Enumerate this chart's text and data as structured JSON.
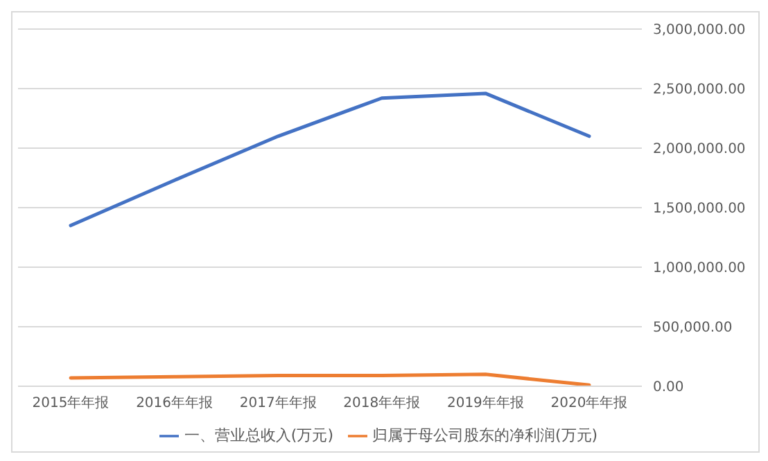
{
  "chart_data": {
    "type": "line",
    "categories": [
      "2015年年报",
      "2016年年报",
      "2017年年报",
      "2018年年报",
      "2019年年报",
      "2020年年报"
    ],
    "series": [
      {
        "name": "一、营业总收入(万元)",
        "color": "#4472c4",
        "values": [
          1350000,
          1730000,
          2100000,
          2420000,
          2460000,
          2100000
        ]
      },
      {
        "name": "归属于母公司股东的净利润(万元)",
        "color": "#ed7d31",
        "values": [
          70000,
          80000,
          90000,
          90000,
          100000,
          10000
        ]
      }
    ],
    "ylim": [
      0,
      3000000
    ],
    "yticks": [
      {
        "value": 0,
        "label": "0.00"
      },
      {
        "value": 500000,
        "label": "500,000.00"
      },
      {
        "value": 1000000,
        "label": "1,000,000.00"
      },
      {
        "value": 1500000,
        "label": "1,500,000.00"
      },
      {
        "value": 2000000,
        "label": "2,000,000.00"
      },
      {
        "value": 2500000,
        "label": "2,500,000.00"
      },
      {
        "value": 3000000,
        "label": "3,000,000.00"
      }
    ],
    "grid": "y",
    "legend": "bottom",
    "marker": "none",
    "line_style": "solid"
  }
}
